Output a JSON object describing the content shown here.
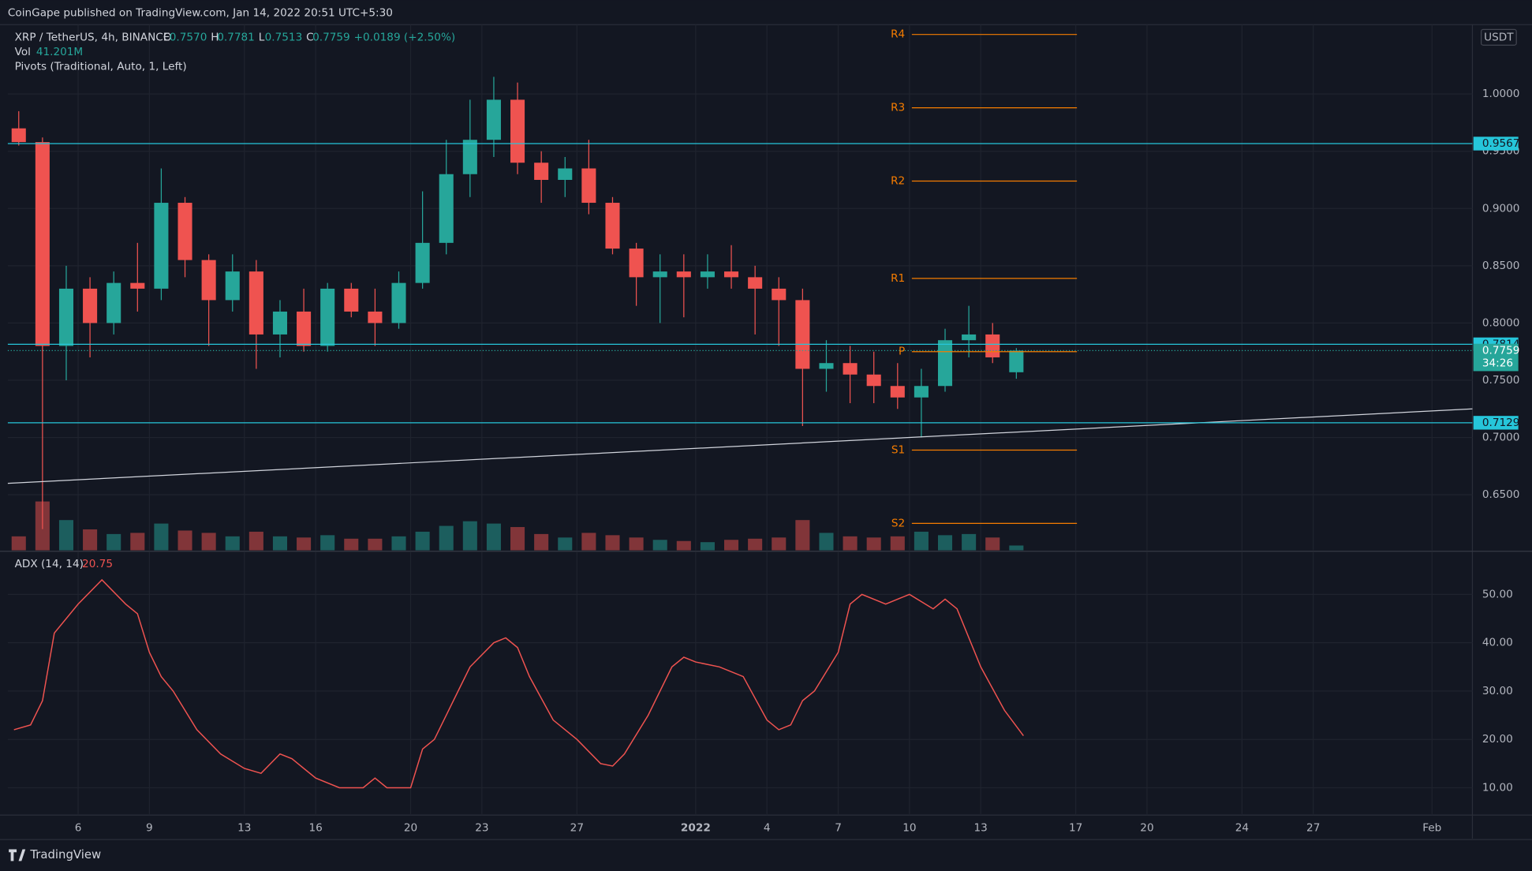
{
  "header": "CoinGape published on TradingView.com, Jan 14, 2022 20:51 UTC+5:30",
  "footer": "TradingView",
  "chart_data": [
    {
      "type": "candlestick",
      "title": "XRP / TetherUS, 4h, BINANCE",
      "ohlc_text": [
        "O",
        "0.7570",
        "H",
        "0.7781",
        "L",
        "0.7513",
        "C",
        "0.7759",
        "+0.0189 (+2.50%)"
      ],
      "volume_title": "Vol",
      "volume_text": "41.201M",
      "pivots_title": "Pivots (Traditional, Auto, 1, Left)",
      "currency": "USDT",
      "countdown": "34:26",
      "up_color": "#26a69a",
      "down_color": "#ef5350",
      "grid": true,
      "x": [
        3.5,
        4.5,
        5.5,
        6.5,
        7.5,
        8.5,
        9.5,
        10.5,
        11.5,
        12.5,
        13.5,
        14.5,
        15.5,
        16.5,
        17.5,
        18.5,
        19.5,
        20.5,
        21.5,
        22.5,
        23.5,
        24.5,
        25.5,
        26.5,
        27.5,
        28.5,
        29.5,
        30.5,
        31.5,
        32.5,
        33.5,
        34.5,
        35.5,
        36.5,
        37.5,
        38.5,
        39.5,
        40.5,
        41.5,
        42.5,
        43.5,
        44.5,
        45.5
      ],
      "open": [
        0.97,
        0.958,
        0.78,
        0.83,
        0.8,
        0.835,
        0.83,
        0.905,
        0.855,
        0.82,
        0.845,
        0.79,
        0.81,
        0.78,
        0.83,
        0.81,
        0.8,
        0.835,
        0.87,
        0.93,
        0.96,
        0.995,
        0.94,
        0.925,
        0.935,
        0.905,
        0.865,
        0.84,
        0.845,
        0.84,
        0.845,
        0.84,
        0.83,
        0.82,
        0.76,
        0.765,
        0.755,
        0.745,
        0.735,
        0.745,
        0.785,
        0.79,
        0.757
      ],
      "high": [
        0.985,
        0.962,
        0.85,
        0.84,
        0.845,
        0.87,
        0.935,
        0.91,
        0.86,
        0.86,
        0.855,
        0.82,
        0.83,
        0.835,
        0.835,
        0.83,
        0.845,
        0.915,
        0.96,
        0.995,
        1.015,
        1.01,
        0.95,
        0.945,
        0.96,
        0.91,
        0.87,
        0.86,
        0.86,
        0.86,
        0.868,
        0.85,
        0.84,
        0.83,
        0.785,
        0.78,
        0.775,
        0.765,
        0.76,
        0.795,
        0.815,
        0.8,
        0.7781
      ],
      "low": [
        0.955,
        0.62,
        0.75,
        0.77,
        0.79,
        0.81,
        0.82,
        0.84,
        0.78,
        0.81,
        0.76,
        0.77,
        0.775,
        0.775,
        0.805,
        0.78,
        0.795,
        0.83,
        0.86,
        0.91,
        0.945,
        0.93,
        0.905,
        0.91,
        0.895,
        0.86,
        0.815,
        0.8,
        0.805,
        0.83,
        0.83,
        0.79,
        0.78,
        0.71,
        0.74,
        0.73,
        0.73,
        0.725,
        0.7,
        0.74,
        0.77,
        0.765,
        0.7513
      ],
      "close": [
        0.958,
        0.78,
        0.83,
        0.8,
        0.835,
        0.83,
        0.905,
        0.855,
        0.82,
        0.845,
        0.79,
        0.81,
        0.78,
        0.83,
        0.81,
        0.8,
        0.835,
        0.87,
        0.93,
        0.96,
        0.995,
        0.94,
        0.925,
        0.935,
        0.905,
        0.865,
        0.84,
        0.845,
        0.84,
        0.845,
        0.84,
        0.83,
        0.82,
        0.76,
        0.765,
        0.755,
        0.745,
        0.735,
        0.745,
        0.785,
        0.79,
        0.77,
        0.7759
      ],
      "volume": [
        120,
        420,
        260,
        180,
        140,
        150,
        230,
        170,
        150,
        120,
        160,
        120,
        110,
        130,
        100,
        100,
        120,
        160,
        210,
        250,
        230,
        200,
        140,
        110,
        150,
        130,
        110,
        90,
        80,
        70,
        90,
        100,
        110,
        260,
        150,
        120,
        110,
        120,
        160,
        130,
        140,
        110,
        41.201
      ],
      "xlim": [
        3.04,
        64.7
      ],
      "xticks": [
        {
          "value": 6,
          "label": "6"
        },
        {
          "value": 9,
          "label": "9"
        },
        {
          "value": 13,
          "label": "13"
        },
        {
          "value": 16,
          "label": "16"
        },
        {
          "value": 20,
          "label": "20"
        },
        {
          "value": 23,
          "label": "23"
        },
        {
          "value": 27,
          "label": "27"
        },
        {
          "value": 32,
          "label": "2022"
        },
        {
          "value": 35,
          "label": "4"
        },
        {
          "value": 38,
          "label": "7"
        },
        {
          "value": 41,
          "label": "10"
        },
        {
          "value": 44,
          "label": "13"
        },
        {
          "value": 48,
          "label": "17"
        },
        {
          "value": 51,
          "label": "20"
        },
        {
          "value": 55,
          "label": "24"
        },
        {
          "value": 58,
          "label": "27"
        },
        {
          "value": 63,
          "label": "Feb"
        }
      ],
      "ylim": [
        0.6015,
        1.0606
      ],
      "yticks": [
        {
          "value": 0.65,
          "label": "0.6500"
        },
        {
          "value": 0.7,
          "label": "0.7000"
        },
        {
          "value": 0.75,
          "label": "0.7500"
        },
        {
          "value": 0.8,
          "label": "0.8000"
        },
        {
          "value": 0.85,
          "label": "0.8500"
        },
        {
          "value": 0.9,
          "label": "0.9000"
        },
        {
          "value": 0.95,
          "label": "0.9500"
        },
        {
          "value": 1.0,
          "label": "1.0000"
        }
      ],
      "levels": [
        0.9567,
        0.7814,
        0.7129
      ],
      "level_color": "#26c6da",
      "trendline": {
        "x": [
          3.04,
          64.7
        ],
        "y": [
          0.66,
          0.725
        ],
        "color": "#d1d4dc"
      },
      "pivot_color": "#f57c00",
      "pivot_range": [
        41.1,
        48.05
      ],
      "pivots": [
        {
          "name": "R4",
          "value": 1.052
        },
        {
          "name": "R3",
          "value": 0.988
        },
        {
          "name": "R2",
          "value": 0.924
        },
        {
          "name": "R1",
          "value": 0.839
        },
        {
          "name": "P",
          "value": 0.775
        },
        {
          "name": "S1",
          "value": 0.689
        },
        {
          "name": "S2",
          "value": 0.625
        }
      ]
    },
    {
      "type": "line",
      "title": "ADX (14, 14)",
      "value_text": "20.75",
      "color": "#ef5350",
      "x": [
        3.3,
        4,
        4.5,
        5,
        6,
        7,
        8,
        8.5,
        9,
        9.5,
        10,
        11,
        12,
        13,
        13.7,
        14.5,
        15,
        16,
        17,
        18,
        18.5,
        19,
        20,
        20.5,
        21,
        22,
        22.5,
        23.5,
        24,
        24.5,
        25,
        26,
        27,
        28,
        28.5,
        29,
        30,
        31,
        31.5,
        32,
        33,
        34,
        35,
        35.5,
        36,
        36.5,
        37,
        38,
        38.5,
        39,
        40,
        41,
        42,
        42.5,
        43,
        44,
        45,
        45.8
      ],
      "values": [
        22,
        23,
        28,
        42,
        48,
        53,
        48,
        46,
        38,
        33,
        30,
        22,
        17,
        14,
        13,
        17,
        16,
        12,
        10,
        10,
        12,
        10,
        10,
        18,
        20,
        30,
        35,
        40,
        41,
        39,
        33,
        24,
        20,
        15,
        14.5,
        17,
        25,
        35,
        37,
        36,
        35,
        33,
        24,
        22,
        23,
        28,
        30,
        38,
        48,
        50,
        48,
        50,
        47,
        49,
        47,
        35,
        26,
        20.75
      ],
      "ylim": [
        4.55,
        58.7
      ],
      "yticks": [
        {
          "value": 10,
          "label": "10.00"
        },
        {
          "value": 20,
          "label": "20.00"
        },
        {
          "value": 30,
          "label": "30.00"
        },
        {
          "value": 40,
          "label": "40.00"
        },
        {
          "value": 50,
          "label": "50.00"
        }
      ]
    }
  ]
}
